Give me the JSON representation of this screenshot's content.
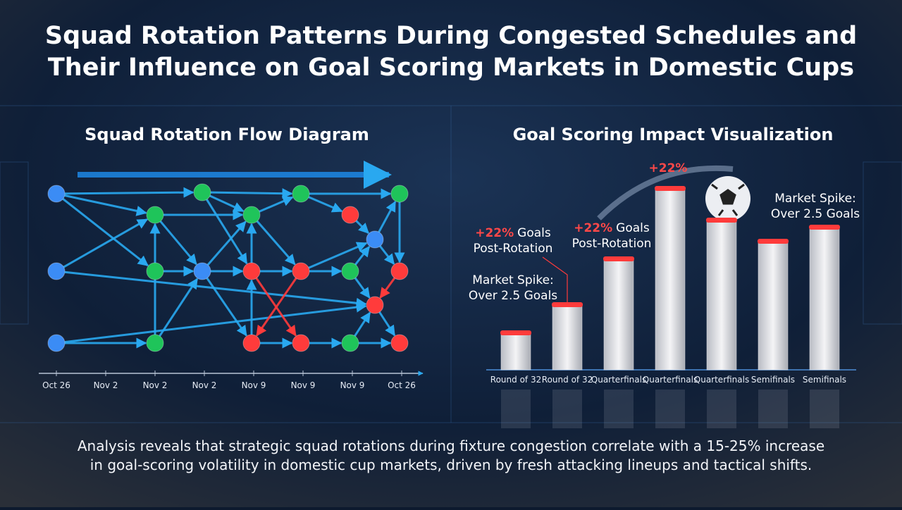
{
  "header": {
    "title_lines": [
      "Squad Rotation Patterns During Congested Schedules and",
      "Their Influence on Goal Scoring Markets in Domestic Cups"
    ]
  },
  "flow_diagram": {
    "title": "Squad Rotation Flow Diagram",
    "timeline": [
      "Oct 26",
      "Nov 2",
      "Nov 2",
      "Nov 2",
      "Nov 9",
      "Nov 9",
      "Nov 9",
      "Oct 26"
    ]
  },
  "chart_data": {
    "type": "bar",
    "title": "Goal Scoring Impact Visualization",
    "categories": [
      "Round of 32",
      "Round of 32",
      "Quarterfinals",
      "Quarterfinals",
      "Quarterfinals",
      "Semifinals",
      "Semifinals"
    ],
    "values": [
      50,
      90,
      155,
      255,
      210,
      180,
      200
    ],
    "ylim": [
      0,
      300
    ],
    "color": "#e8e8ec",
    "cap_color": "#ff3b3b",
    "annotations": [
      {
        "highlight": "+22%"
      },
      {
        "highlight": "+22%",
        "text": "Goals",
        "line2": "Post-Rotation"
      },
      {
        "highlight": "+22%",
        "text": "Goals",
        "line2": "Post-Rotation"
      },
      {
        "line1": "Market Spike:",
        "line2": "Over 2.5 Goals"
      },
      {
        "line1": "Market Spike:",
        "line2": "Over 2.5 Goals"
      }
    ]
  },
  "footer": {
    "lines": [
      "Analysis reveals that strategic squad rotations during fixture congestion correlate with a 15-25% increase",
      "in goal-scoring volatility in domestic cup markets, driven by fresh attacking lineups and tactical shifts."
    ]
  }
}
